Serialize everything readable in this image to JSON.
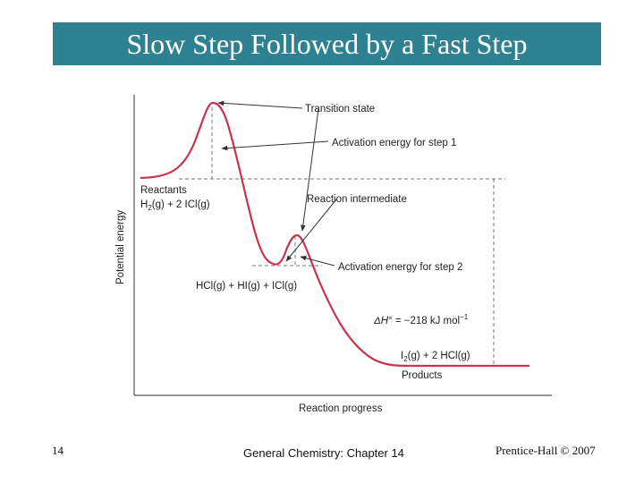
{
  "slide": {
    "title": "Slow Step Followed by a Fast Step",
    "number": "14",
    "footer_center": "General Chemistry: Chapter 14",
    "footer_right": "Prentice-Hall © 2007"
  },
  "diagram": {
    "x_label": "Reaction progress",
    "y_label": "Potential energy",
    "labels": {
      "transition_state": "Transition state",
      "activation_step1": "Activation energy for step 1",
      "reactants_title": "Reactants",
      "reactants_formula_a": "H",
      "reactants_formula_sub": "2",
      "reactants_formula_b": "(g) + 2 ICl(g)",
      "intermediate": "Reaction intermediate",
      "activation_step2": "Activation energy for step 2",
      "intermediate_formula": "HCl(g) + HI(g) + ICl(g)",
      "delta_h_a": "ΔH",
      "delta_h_b": "° = −218 kJ mol",
      "delta_h_sup": "−1",
      "products_formula_a": "I",
      "products_formula_sub": "2",
      "products_formula_b": "(g) + 2 HCl(g)",
      "products_title": "Products"
    },
    "colors": {
      "curve": "#c8344a",
      "axis": "#555555",
      "arrow": "#333333",
      "dashed": "#777777",
      "title_bar": "#2e8191"
    }
  }
}
